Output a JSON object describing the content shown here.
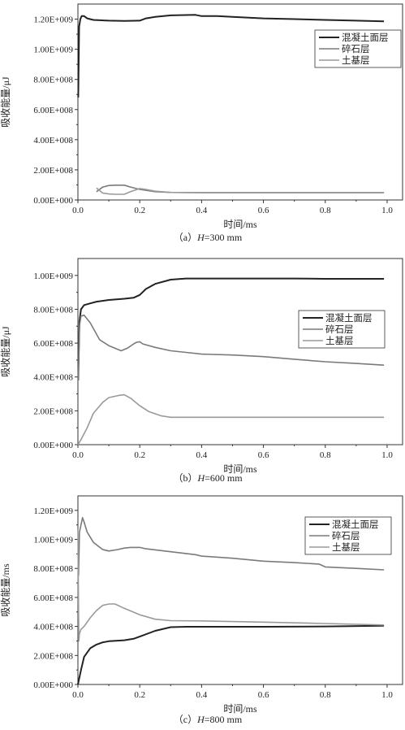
{
  "chart_data": [
    {
      "type": "line",
      "caption_prefix": "（a）",
      "caption_var": "H",
      "caption_value": "=300 mm",
      "xlabel": "时间/ms",
      "ylabel": "吸收能量/μJ",
      "xlim": [
        0,
        1.05
      ],
      "ylim": [
        0,
        1300000000.0
      ],
      "xticks": [
        "0.0",
        "0.2",
        "0.4",
        "0.6",
        "0.8",
        "1.0"
      ],
      "yticks": [
        "0.00E+000",
        "2.00E+008",
        "4.00E+008",
        "6.00E+008",
        "8.00E+008",
        "1.00E+009",
        "1.20E+009"
      ],
      "legend_position": "right",
      "series": [
        {
          "name": "混凝土面层",
          "color": "#222222",
          "width": 2.0,
          "x": [
            0.001,
            0.004,
            0.008,
            0.012,
            0.02,
            0.03,
            0.05,
            0.1,
            0.15,
            0.2,
            0.22,
            0.25,
            0.3,
            0.38,
            0.4,
            0.45,
            0.5,
            0.6,
            0.7,
            0.8,
            0.9,
            0.99
          ],
          "y": [
            680000000.0,
            1150000000.0,
            1200000000.0,
            1220000000.0,
            1220000000.0,
            1205000000.0,
            1195000000.0,
            1190000000.0,
            1188000000.0,
            1190000000.0,
            1205000000.0,
            1215000000.0,
            1225000000.0,
            1228000000.0,
            1220000000.0,
            1220000000.0,
            1215000000.0,
            1205000000.0,
            1200000000.0,
            1195000000.0,
            1190000000.0,
            1185000000.0
          ]
        },
        {
          "name": "碎石层",
          "color": "#7a7a7a",
          "width": 1.6,
          "x": [
            0.06,
            0.08,
            0.1,
            0.12,
            0.15,
            0.17,
            0.2,
            0.22,
            0.25,
            0.3,
            0.4,
            0.6,
            0.8,
            0.99
          ],
          "y": [
            55000000.0,
            85000000.0,
            96000000.0,
            98000000.0,
            98000000.0,
            86000000.0,
            70000000.0,
            64000000.0,
            55000000.0,
            50000000.0,
            49000000.0,
            49000000.0,
            49000000.0,
            49000000.0
          ]
        },
        {
          "name": "土基层",
          "color": "#9a9a9a",
          "width": 1.6,
          "x": [
            0.06,
            0.08,
            0.1,
            0.12,
            0.15,
            0.17,
            0.2,
            0.22,
            0.25,
            0.3,
            0.4,
            0.6,
            0.8,
            0.99
          ],
          "y": [
            80000000.0,
            46000000.0,
            40000000.0,
            38000000.0,
            38000000.0,
            55000000.0,
            76000000.0,
            70000000.0,
            58000000.0,
            50000000.0,
            48000000.0,
            48000000.0,
            48000000.0,
            48000000.0
          ]
        }
      ]
    },
    {
      "type": "line",
      "caption_prefix": "（b）",
      "caption_var": "H",
      "caption_value": "=600 mm",
      "xlabel": "时间/ms",
      "ylabel": "吸收能量/μJ",
      "xlim": [
        0,
        1.05
      ],
      "ylim": [
        0,
        1100000000.0
      ],
      "xticks": [
        "0.0",
        "0.2",
        "0.4",
        "0.6",
        "0.8",
        "1.0"
      ],
      "yticks": [
        "0.00E+000",
        "2.00E+008",
        "4.00E+008",
        "6.00E+008",
        "8.00E+008",
        "1.00E+009"
      ],
      "legend_position": "right",
      "series": [
        {
          "name": "混凝土面层",
          "color": "#222222",
          "width": 2.0,
          "x": [
            0.001,
            0.005,
            0.01,
            0.02,
            0.04,
            0.06,
            0.1,
            0.15,
            0.18,
            0.2,
            0.22,
            0.25,
            0.3,
            0.35,
            0.4,
            0.5,
            0.6,
            0.7,
            0.8,
            0.9,
            0.99
          ],
          "y": [
            380000000.0,
            730000000.0,
            800000000.0,
            825000000.0,
            835000000.0,
            845000000.0,
            855000000.0,
            862000000.0,
            868000000.0,
            885000000.0,
            920000000.0,
            950000000.0,
            975000000.0,
            982000000.0,
            982000000.0,
            982000000.0,
            982000000.0,
            982000000.0,
            980000000.0,
            980000000.0,
            980000000.0
          ]
        },
        {
          "name": "碎石层",
          "color": "#7a7a7a",
          "width": 1.6,
          "x": [
            0.001,
            0.005,
            0.01,
            0.02,
            0.04,
            0.07,
            0.1,
            0.14,
            0.16,
            0.18,
            0.19,
            0.2,
            0.21,
            0.25,
            0.3,
            0.35,
            0.4,
            0.5,
            0.6,
            0.7,
            0.8,
            0.9,
            0.99
          ],
          "y": [
            380000000.0,
            700000000.0,
            760000000.0,
            765000000.0,
            720000000.0,
            620000000.0,
            585000000.0,
            555000000.0,
            570000000.0,
            595000000.0,
            605000000.0,
            608000000.0,
            595000000.0,
            575000000.0,
            555000000.0,
            545000000.0,
            535000000.0,
            530000000.0,
            520000000.0,
            505000000.0,
            490000000.0,
            480000000.0,
            470000000.0
          ]
        },
        {
          "name": "土基层",
          "color": "#9a9a9a",
          "width": 1.6,
          "x": [
            0.0,
            0.01,
            0.03,
            0.05,
            0.08,
            0.1,
            0.13,
            0.15,
            0.17,
            0.2,
            0.23,
            0.27,
            0.3,
            0.4,
            0.6,
            0.8,
            0.99
          ],
          "y": [
            0.0,
            30000000.0,
            100000000.0,
            185000000.0,
            250000000.0,
            278000000.0,
            290000000.0,
            295000000.0,
            275000000.0,
            230000000.0,
            195000000.0,
            170000000.0,
            162000000.0,
            162000000.0,
            162000000.0,
            162000000.0,
            162000000.0
          ]
        }
      ]
    },
    {
      "type": "line",
      "caption_prefix": "（c）",
      "caption_var": "H",
      "caption_value": "=800 mm",
      "xlabel": "时间/ms",
      "ylabel": "吸收能量/ms",
      "xlim": [
        0,
        1.05
      ],
      "ylim": [
        0,
        1300000000.0
      ],
      "xticks": [
        "0.0",
        "0.2",
        "0.4",
        "0.6",
        "0.8",
        "1.0"
      ],
      "yticks": [
        "0.00E+000",
        "2.00E+008",
        "4.00E+008",
        "6.00E+008",
        "8.00E+008",
        "1.00E+009",
        "1.20E+009"
      ],
      "legend_position": "top-right",
      "series": [
        {
          "name": "混凝土面层",
          "color": "#222222",
          "width": 2.0,
          "x": [
            0.0,
            0.01,
            0.02,
            0.04,
            0.06,
            0.08,
            0.1,
            0.15,
            0.18,
            0.2,
            0.25,
            0.3,
            0.35,
            0.4,
            0.6,
            0.8,
            0.99
          ],
          "y": [
            0.0,
            100000000.0,
            190000000.0,
            250000000.0,
            275000000.0,
            290000000.0,
            298000000.0,
            305000000.0,
            315000000.0,
            330000000.0,
            370000000.0,
            395000000.0,
            398000000.0,
            398000000.0,
            398000000.0,
            400000000.0,
            405000000.0
          ]
        },
        {
          "name": "碎石层",
          "color": "#7a7a7a",
          "width": 1.6,
          "x": [
            0.002,
            0.005,
            0.01,
            0.015,
            0.02,
            0.03,
            0.05,
            0.08,
            0.1,
            0.13,
            0.15,
            0.17,
            0.2,
            0.22,
            0.3,
            0.38,
            0.4,
            0.5,
            0.6,
            0.7,
            0.78,
            0.8,
            0.9,
            0.99
          ],
          "y": [
            750000000.0,
            1050000000.0,
            1100000000.0,
            1150000000.0,
            1120000000.0,
            1050000000.0,
            980000000.0,
            930000000.0,
            920000000.0,
            930000000.0,
            940000000.0,
            945000000.0,
            945000000.0,
            935000000.0,
            915000000.0,
            895000000.0,
            885000000.0,
            870000000.0,
            850000000.0,
            840000000.0,
            830000000.0,
            810000000.0,
            800000000.0,
            790000000.0
          ]
        },
        {
          "name": "土基层",
          "color": "#9a9a9a",
          "width": 1.6,
          "x": [
            0.0,
            0.003,
            0.005,
            0.01,
            0.02,
            0.04,
            0.06,
            0.08,
            0.1,
            0.12,
            0.15,
            0.2,
            0.25,
            0.3,
            0.4,
            0.6,
            0.8,
            0.99
          ],
          "y": [
            1070000000.0,
            300000000.0,
            350000000.0,
            380000000.0,
            400000000.0,
            460000000.0,
            510000000.0,
            545000000.0,
            555000000.0,
            555000000.0,
            525000000.0,
            480000000.0,
            450000000.0,
            440000000.0,
            438000000.0,
            430000000.0,
            420000000.0,
            410000000.0
          ]
        }
      ]
    }
  ]
}
